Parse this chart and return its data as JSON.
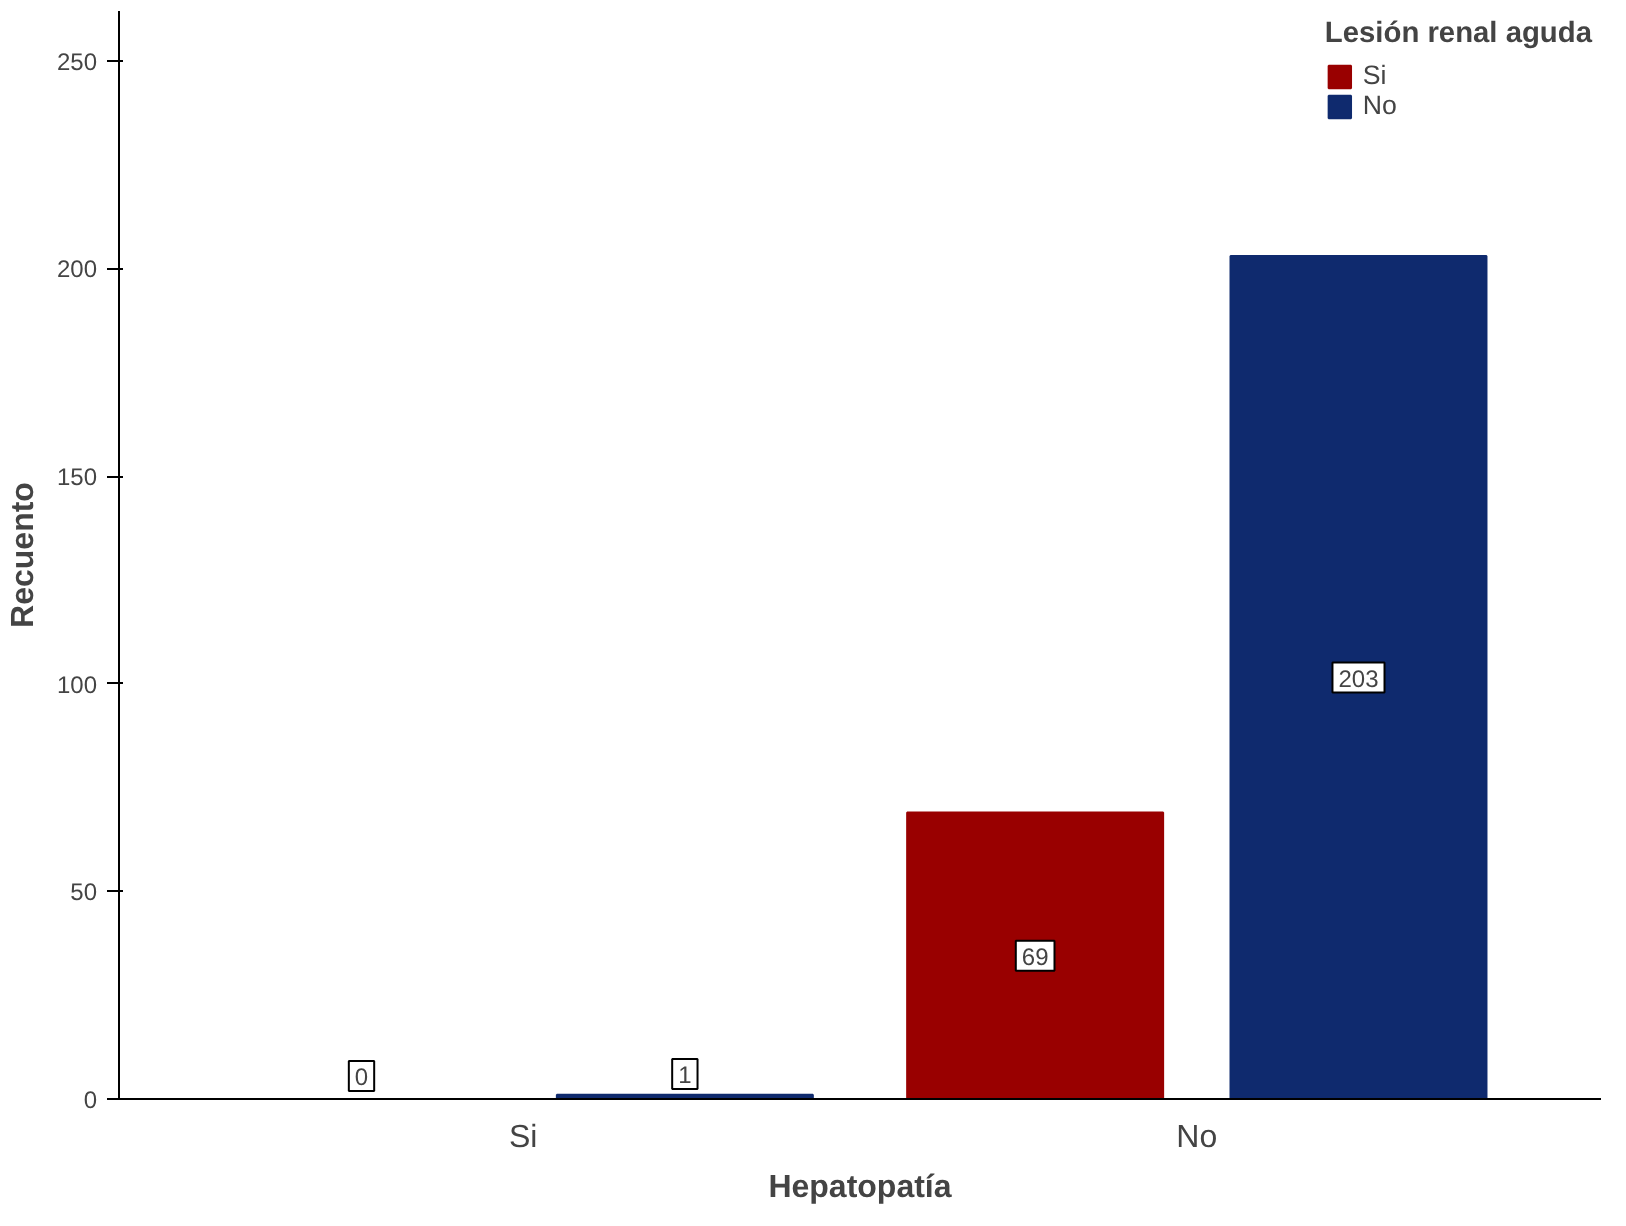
{
  "chart_data": {
    "type": "bar",
    "xlabel": "Hepatopatía",
    "ylabel": "Recuento",
    "legend_title": "Lesión renal aguda",
    "categories": [
      "Si",
      "No"
    ],
    "series": [
      {
        "name": "Si",
        "color": "#990000",
        "values": [
          0,
          69
        ]
      },
      {
        "name": "No",
        "color": "#0f2a6e",
        "values": [
          1,
          203
        ]
      }
    ],
    "ylim": [
      0,
      262
    ],
    "yticks": [
      0,
      50,
      100,
      150,
      200,
      250
    ],
    "grid": false,
    "legend": "top right",
    "data_labels": true
  }
}
